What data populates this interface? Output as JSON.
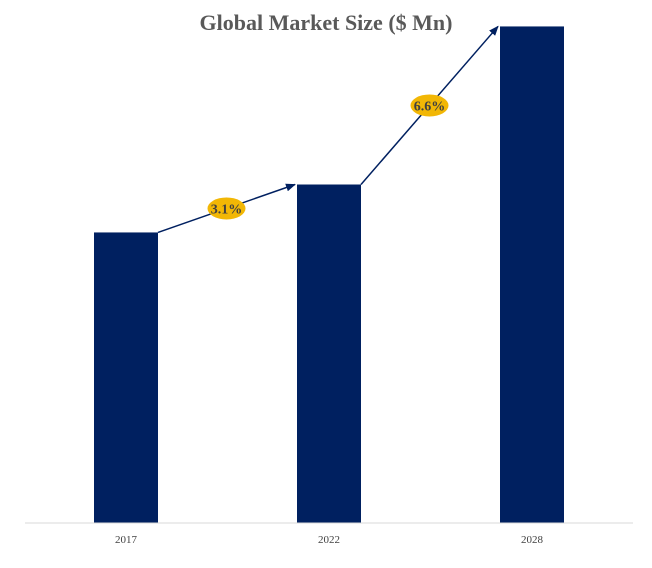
{
  "chart_data": {
    "type": "bar",
    "title": "Global Market Size ($ Mn)",
    "categories": [
      "2017",
      "2022",
      "2028"
    ],
    "values": [
      100,
      116.5,
      170.9
    ],
    "ylim": [
      0,
      180
    ],
    "grid": false,
    "xlabel": "",
    "ylabel": "",
    "annotations": [
      {
        "from": "2017",
        "to": "2022",
        "label": "3.1%"
      },
      {
        "from": "2022",
        "to": "2028",
        "label": "6.6%"
      }
    ],
    "colors": {
      "bar": "#002060",
      "arrow": "#002060",
      "badge": "#f2b705",
      "axis": "#d9d9d9"
    }
  }
}
